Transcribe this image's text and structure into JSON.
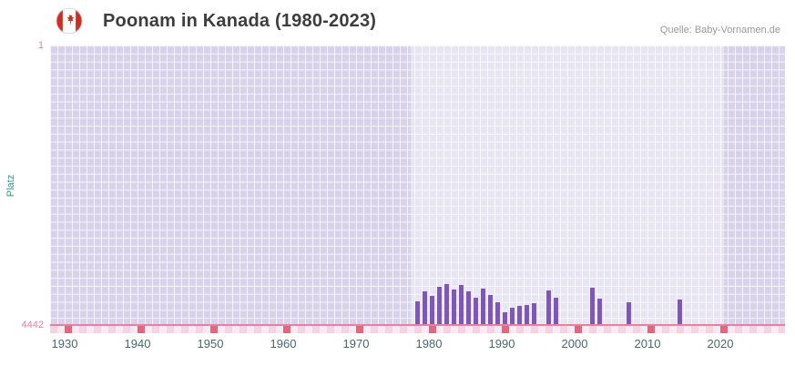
{
  "header": {
    "title": "Poonam in Kanada (1980-2023)",
    "source": "Quelle: Baby-Vornamen.de",
    "flag": {
      "name": "canada-flag-icon",
      "red": "#d52b1e",
      "white": "#ffffff"
    }
  },
  "chart_data": {
    "type": "bar",
    "title": "Poonam in Kanada (1980-2023)",
    "ylabel": "Platz",
    "xlabel": "",
    "legend": "none",
    "grid": true,
    "y_axis": {
      "min": 1,
      "max": 4442,
      "inverted": true,
      "top_tick": "1",
      "bottom_tick": "4442"
    },
    "x_domain": [
      1928,
      2028
    ],
    "x_ticks": [
      1930,
      1940,
      1950,
      1960,
      1970,
      1980,
      1990,
      2000,
      2010,
      2020
    ],
    "data_band_years": [
      1977.5,
      2020.5
    ],
    "points": [
      {
        "year": 1978,
        "platz": 4050
      },
      {
        "year": 1979,
        "platz": 3890
      },
      {
        "year": 1980,
        "platz": 3960
      },
      {
        "year": 1981,
        "platz": 3820
      },
      {
        "year": 1982,
        "platz": 3780
      },
      {
        "year": 1983,
        "platz": 3860
      },
      {
        "year": 1984,
        "platz": 3800
      },
      {
        "year": 1985,
        "platz": 3900
      },
      {
        "year": 1986,
        "platz": 3990
      },
      {
        "year": 1987,
        "platz": 3850
      },
      {
        "year": 1988,
        "platz": 3950
      },
      {
        "year": 1989,
        "platz": 4060
      },
      {
        "year": 1990,
        "platz": 4230
      },
      {
        "year": 1991,
        "platz": 4160
      },
      {
        "year": 1992,
        "platz": 4130
      },
      {
        "year": 1993,
        "platz": 4110
      },
      {
        "year": 1994,
        "platz": 4080
      },
      {
        "year": 1996,
        "platz": 3880
      },
      {
        "year": 1997,
        "platz": 3990
      },
      {
        "year": 2002,
        "platz": 3830
      },
      {
        "year": 2003,
        "platz": 4010
      },
      {
        "year": 2007,
        "platz": 4060
      },
      {
        "year": 2014,
        "platz": 4020
      }
    ],
    "strip_highlight_years": [
      1930,
      1940,
      1950,
      1960,
      1970,
      1980,
      1990,
      2000,
      2010,
      2020
    ],
    "colors": {
      "bar": "#7e57b8",
      "background": "#d8d3ea",
      "baseline": "#ec809a",
      "y_tick": "#e87f95",
      "x_tick": "#47696b",
      "ylabel": "#2b9a9a",
      "title": "#3d3d3d",
      "source": "#999999",
      "strip_light": "#f4d4e4",
      "strip_lighter": "#fbeaf2",
      "strip_highlight": "#e1697e"
    }
  }
}
